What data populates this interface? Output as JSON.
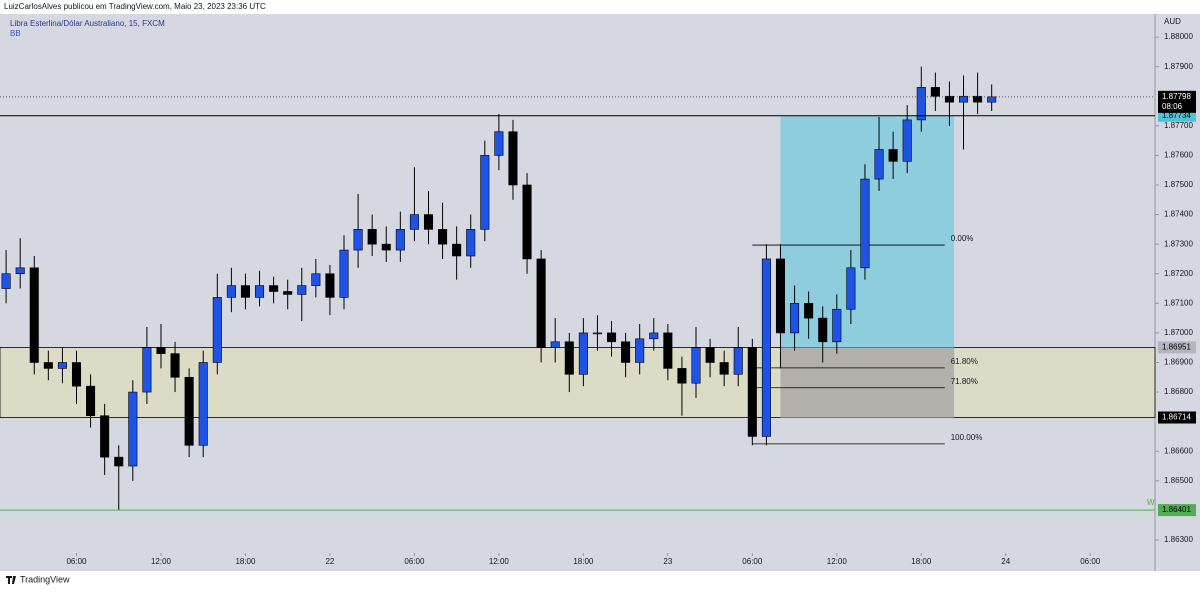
{
  "header": {
    "publisher": "LuizCarlosAlves publicou em TradingView.com, Maio 23, 2023 23:36 UTC"
  },
  "footer": {
    "brand": "TradingView"
  },
  "chart_data": {
    "type": "candlestick",
    "title": "Libra Esterlina/Dólar Australiano, 15, FXCM",
    "indicator": "BB",
    "currency": "AUD",
    "up_color": "#1e53e5",
    "down_color": "#000000",
    "x": [
      "2023-05-21 01:00",
      "2023-05-21 02:00",
      "2023-05-21 03:00",
      "2023-05-21 04:00",
      "2023-05-21 05:00",
      "2023-05-21 06:00",
      "2023-05-21 07:00",
      "2023-05-21 08:00",
      "2023-05-21 09:00",
      "2023-05-21 10:00",
      "2023-05-21 11:00",
      "2023-05-21 12:00",
      "2023-05-21 13:00",
      "2023-05-21 14:00",
      "2023-05-21 15:00",
      "2023-05-21 16:00",
      "2023-05-21 17:00",
      "2023-05-21 18:00",
      "2023-05-21 19:00",
      "2023-05-21 20:00",
      "2023-05-21 21:00",
      "2023-05-21 22:00",
      "2023-05-21 23:00",
      "2023-05-22 00:00",
      "2023-05-22 01:00",
      "2023-05-22 02:00",
      "2023-05-22 03:00",
      "2023-05-22 04:00",
      "2023-05-22 05:00",
      "2023-05-22 06:00",
      "2023-05-22 07:00",
      "2023-05-22 08:00",
      "2023-05-22 09:00",
      "2023-05-22 10:00",
      "2023-05-22 11:00",
      "2023-05-22 12:00",
      "2023-05-22 13:00",
      "2023-05-22 14:00",
      "2023-05-22 15:00",
      "2023-05-22 16:00",
      "2023-05-22 17:00",
      "2023-05-22 18:00",
      "2023-05-22 19:00",
      "2023-05-22 20:00",
      "2023-05-22 21:00",
      "2023-05-22 22:00",
      "2023-05-22 23:00",
      "2023-05-23 00:00",
      "2023-05-23 01:00",
      "2023-05-23 02:00",
      "2023-05-23 03:00",
      "2023-05-23 04:00",
      "2023-05-23 05:00",
      "2023-05-23 06:00",
      "2023-05-23 07:00",
      "2023-05-23 08:00",
      "2023-05-23 09:00",
      "2023-05-23 10:00",
      "2023-05-23 11:00",
      "2023-05-23 12:00",
      "2023-05-23 13:00",
      "2023-05-23 14:00",
      "2023-05-23 15:00",
      "2023-05-23 16:00",
      "2023-05-23 17:00",
      "2023-05-23 18:00",
      "2023-05-23 19:00",
      "2023-05-23 20:00",
      "2023-05-23 21:00",
      "2023-05-23 22:00",
      "2023-05-23 23:00"
    ],
    "open": [
      1.8715,
      1.872,
      1.8722,
      1.869,
      1.8688,
      1.869,
      1.8682,
      1.8672,
      1.8658,
      1.8655,
      1.868,
      1.8695,
      1.8693,
      1.8685,
      1.8662,
      1.869,
      1.8712,
      1.8716,
      1.8712,
      1.8716,
      1.8714,
      1.8713,
      1.8716,
      1.872,
      1.8712,
      1.8728,
      1.8735,
      1.873,
      1.8728,
      1.8735,
      1.874,
      1.8735,
      1.873,
      1.8726,
      1.8735,
      1.876,
      1.8768,
      1.875,
      1.8725,
      1.8695,
      1.8697,
      1.8686,
      1.87,
      1.87,
      1.8697,
      1.869,
      1.8698,
      1.87,
      1.8688,
      1.8683,
      1.8695,
      1.869,
      1.8686,
      1.8695,
      1.8665,
      1.8725,
      1.87,
      1.871,
      1.8705,
      1.8697,
      1.8708,
      1.8722,
      1.8752,
      1.8762,
      1.8758,
      1.8772,
      1.8783,
      1.878,
      1.8778,
      1.878,
      1.8778
    ],
    "high": [
      1.8728,
      1.8732,
      1.8726,
      1.8694,
      1.8695,
      1.8694,
      1.8686,
      1.8676,
      1.8662,
      1.8684,
      1.8702,
      1.8703,
      1.8697,
      1.8688,
      1.8694,
      1.872,
      1.8722,
      1.872,
      1.8721,
      1.8719,
      1.8718,
      1.8722,
      1.8725,
      1.8723,
      1.8733,
      1.8747,
      1.874,
      1.8736,
      1.8741,
      1.8756,
      1.8748,
      1.8744,
      1.8736,
      1.874,
      1.8765,
      1.8774,
      1.8772,
      1.8754,
      1.8728,
      1.8705,
      1.87,
      1.8705,
      1.8706,
      1.8704,
      1.87,
      1.8703,
      1.8705,
      1.8703,
      1.8692,
      1.8702,
      1.8698,
      1.8694,
      1.8702,
      1.8698,
      1.873,
      1.873,
      1.8716,
      1.8714,
      1.8709,
      1.8713,
      1.8728,
      1.8757,
      1.8773,
      1.8768,
      1.8777,
      1.879,
      1.8788,
      1.8785,
      1.8787,
      1.8788,
      1.8784
    ],
    "low": [
      1.871,
      1.8715,
      1.8686,
      1.8684,
      1.8683,
      1.8676,
      1.8668,
      1.8652,
      1.864,
      1.865,
      1.8676,
      1.8688,
      1.868,
      1.8658,
      1.8658,
      1.8686,
      1.8707,
      1.8708,
      1.8709,
      1.871,
      1.8708,
      1.8704,
      1.8712,
      1.8706,
      1.8708,
      1.8722,
      1.8726,
      1.8724,
      1.8724,
      1.8731,
      1.873,
      1.8725,
      1.8718,
      1.8722,
      1.8731,
      1.8755,
      1.8745,
      1.872,
      1.869,
      1.869,
      1.868,
      1.8682,
      1.8694,
      1.8692,
      1.8685,
      1.8686,
      1.8694,
      1.8684,
      1.8672,
      1.8678,
      1.8685,
      1.8682,
      1.8682,
      1.8662,
      1.8662,
      1.8688,
      1.8694,
      1.8698,
      1.869,
      1.8693,
      1.8703,
      1.8718,
      1.8748,
      1.8752,
      1.8754,
      1.8768,
      1.8775,
      1.877,
      1.8762,
      1.8774,
      1.8775
    ],
    "close": [
      1.872,
      1.8722,
      1.869,
      1.8688,
      1.869,
      1.8682,
      1.8672,
      1.8658,
      1.8655,
      1.868,
      1.8695,
      1.8693,
      1.8685,
      1.8662,
      1.869,
      1.8712,
      1.8716,
      1.8712,
      1.8716,
      1.8714,
      1.8713,
      1.8716,
      1.872,
      1.8712,
      1.8728,
      1.8735,
      1.873,
      1.8728,
      1.8735,
      1.874,
      1.8735,
      1.873,
      1.8726,
      1.8735,
      1.876,
      1.8768,
      1.875,
      1.8725,
      1.8695,
      1.8697,
      1.8686,
      1.87,
      1.87,
      1.8697,
      1.869,
      1.8698,
      1.87,
      1.8688,
      1.8683,
      1.8695,
      1.869,
      1.8686,
      1.8695,
      1.8665,
      1.8725,
      1.87,
      1.871,
      1.8705,
      1.8697,
      1.8708,
      1.8722,
      1.8752,
      1.8762,
      1.8758,
      1.8772,
      1.8783,
      1.878,
      1.8778,
      1.878,
      1.8778,
      1.87798
    ],
    "xlim": [
      "2023-05-21 00:34",
      "2023-05-24 10:36"
    ],
    "xticks": [
      {
        "value": "2023-05-21 06:00",
        "label": "06:00"
      },
      {
        "value": "2023-05-21 12:00",
        "label": "12:00"
      },
      {
        "value": "2023-05-21 18:00",
        "label": "18:00"
      },
      {
        "value": "2023-05-22 00:00",
        "label": "22"
      },
      {
        "value": "2023-05-22 06:00",
        "label": "06:00"
      },
      {
        "value": "2023-05-22 12:00",
        "label": "12:00"
      },
      {
        "value": "2023-05-22 18:00",
        "label": "18:00"
      },
      {
        "value": "2023-05-23 00:00",
        "label": "23"
      },
      {
        "value": "2023-05-23 06:00",
        "label": "06:00"
      },
      {
        "value": "2023-05-23 12:00",
        "label": "12:00"
      },
      {
        "value": "2023-05-23 18:00",
        "label": "18:00"
      },
      {
        "value": "2023-05-24 00:00",
        "label": "24"
      },
      {
        "value": "2023-05-24 06:00",
        "label": "06:00"
      }
    ],
    "ylim": [
      1.86256,
      1.88078
    ],
    "yticks": [
      {
        "value": 1.88,
        "label": "1.88000"
      },
      {
        "value": 1.879,
        "label": "1.87900"
      },
      {
        "value": 1.877,
        "label": "1.87700"
      },
      {
        "value": 1.876,
        "label": "1.87600"
      },
      {
        "value": 1.875,
        "label": "1.87500"
      },
      {
        "value": 1.874,
        "label": "1.87400"
      },
      {
        "value": 1.873,
        "label": "1.87300"
      },
      {
        "value": 1.872,
        "label": "1.87200"
      },
      {
        "value": 1.871,
        "label": "1.87100"
      },
      {
        "value": 1.87,
        "label": "1.87000"
      },
      {
        "value": 1.869,
        "label": "1.86900"
      },
      {
        "value": 1.868,
        "label": "1.86800"
      },
      {
        "value": 1.866,
        "label": "1.86600"
      },
      {
        "value": 1.865,
        "label": "1.86500"
      },
      {
        "value": 1.863,
        "label": "1.86300"
      }
    ],
    "last_price": {
      "value": 1.87798,
      "label": "1.87798",
      "countdown": "08:06"
    },
    "zone": {
      "top": {
        "value": 1.86951,
        "label": "1.86951"
      },
      "bottom": {
        "value": 1.86714,
        "label": "1.86714"
      },
      "color": "#dcdcc6"
    },
    "price_lines": [
      {
        "value": 1.87734,
        "label": "1.87734",
        "color": "#000000",
        "badge": "#4fc3d9"
      },
      {
        "value": 1.86401,
        "label": "1.86401",
        "color": "#4caf50",
        "badge": "#4caf50",
        "tag": "W"
      }
    ],
    "position": {
      "x1": "2023-05-23 08:00",
      "x2": "2023-05-23 20:20",
      "target": 1.87734,
      "entry": 1.86951,
      "stop": 1.86712
    },
    "fib": {
      "x1": "2023-05-23 06:00",
      "x2": "2023-05-23 19:40",
      "high": 1.87297,
      "low": 1.86625,
      "levels": [
        {
          "percent": 0,
          "label": "0.00%"
        },
        {
          "percent": 61.8,
          "label": "61.80%"
        },
        {
          "percent": 71.8,
          "label": "71.80%"
        },
        {
          "percent": 100,
          "label": "100.00%"
        }
      ]
    }
  }
}
